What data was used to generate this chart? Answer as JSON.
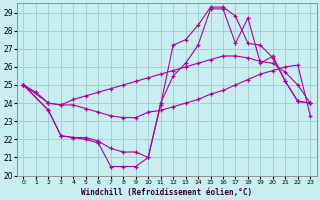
{
  "bg_color": "#c8eef0",
  "line_color": "#aa00aa",
  "grid_color": "#a0d0d8",
  "xlabel": "Windchill (Refroidissement éolien,°C)",
  "ylim": [
    20,
    29.5
  ],
  "xlim": [
    -0.5,
    23.5
  ],
  "yticks": [
    20,
    21,
    22,
    23,
    24,
    25,
    26,
    27,
    28,
    29
  ],
  "xticks": [
    0,
    1,
    2,
    3,
    4,
    5,
    6,
    7,
    8,
    9,
    10,
    11,
    12,
    13,
    14,
    15,
    16,
    17,
    18,
    19,
    20,
    21,
    22,
    23
  ],
  "lines": [
    {
      "x": [
        0,
        1,
        2,
        3,
        4,
        5,
        6,
        7,
        8,
        9,
        10,
        11,
        12,
        13,
        14,
        15,
        16,
        17,
        18,
        19,
        20,
        21,
        22,
        23
      ],
      "y": [
        25.0,
        24.6,
        24.0,
        23.9,
        23.9,
        23.7,
        23.5,
        23.3,
        23.2,
        23.2,
        23.5,
        23.6,
        23.8,
        24.0,
        24.2,
        24.5,
        24.7,
        25.0,
        25.3,
        25.6,
        25.8,
        26.0,
        26.1,
        23.3
      ]
    },
    {
      "x": [
        0,
        2,
        3,
        4,
        5,
        6,
        7,
        8,
        9,
        10,
        11,
        12,
        13,
        14,
        15,
        16,
        17,
        18,
        19,
        20,
        21,
        22,
        23
      ],
      "y": [
        25.0,
        24.0,
        23.9,
        24.2,
        24.4,
        24.6,
        24.8,
        25.0,
        25.2,
        25.4,
        25.6,
        25.8,
        26.0,
        26.2,
        26.4,
        26.6,
        26.6,
        26.5,
        26.3,
        26.2,
        25.7,
        25.0,
        24.0
      ]
    },
    {
      "x": [
        0,
        2,
        3,
        4,
        5,
        6,
        7,
        8,
        9,
        10,
        11,
        12,
        13,
        14,
        15,
        16,
        17,
        18,
        19,
        20,
        21,
        22,
        23
      ],
      "y": [
        25.0,
        23.6,
        22.2,
        22.1,
        22.0,
        21.8,
        20.5,
        20.5,
        20.5,
        21.0,
        23.9,
        27.2,
        27.5,
        28.3,
        29.3,
        29.3,
        28.8,
        27.3,
        27.2,
        26.5,
        25.2,
        24.1,
        24.0
      ]
    },
    {
      "x": [
        0,
        2,
        3,
        4,
        5,
        6,
        7,
        8,
        9,
        10,
        11,
        12,
        13,
        14,
        15,
        16,
        17,
        18,
        19,
        20,
        21,
        22,
        23
      ],
      "y": [
        25.0,
        23.6,
        22.2,
        22.1,
        22.1,
        21.9,
        21.5,
        21.3,
        21.3,
        21.0,
        24.0,
        25.5,
        26.2,
        27.2,
        29.2,
        29.2,
        27.3,
        28.7,
        26.2,
        26.6,
        25.2,
        24.1,
        24.0
      ]
    }
  ]
}
